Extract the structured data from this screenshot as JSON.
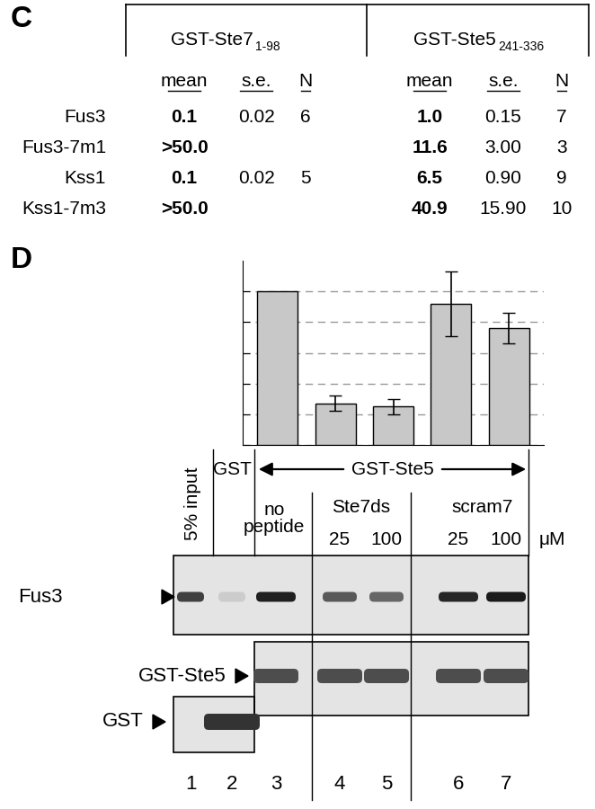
{
  "panel_c": {
    "label": "C",
    "table": {
      "groups": [
        {
          "name": "GST-Ste7",
          "subscript": "1-98"
        },
        {
          "name": "GST-Ste5",
          "subscript": "241-336"
        }
      ],
      "columns": [
        "mean",
        "s.e.",
        "N"
      ],
      "rows": [
        {
          "name": "Fus3",
          "cells": [
            "0.1",
            "0.02",
            "6",
            "1.0",
            "0.15",
            "7"
          ]
        },
        {
          "name": "Fus3-7m1",
          "cells": [
            ">50.0",
            null,
            null,
            "11.6",
            "3.00",
            "3"
          ]
        },
        {
          "name": "Kss1",
          "cells": [
            "0.1",
            "0.02",
            "5",
            "6.5",
            "0.90",
            "9"
          ]
        },
        {
          "name": "Kss1-7m3",
          "cells": [
            ">50.0",
            null,
            null,
            "40.9",
            "15.90",
            "10"
          ]
        }
      ]
    }
  },
  "chart_data": {
    "type": "bar",
    "categories": [
      null,
      null,
      null,
      null,
      null
    ],
    "values": [
      1.0,
      0.27,
      0.25,
      0.92,
      0.76
    ],
    "errors": [
      null,
      0.05,
      0.05,
      0.21,
      0.1
    ],
    "color": "#c8c8c8",
    "ylim": [
      0,
      1.2
    ],
    "yticks": [
      0,
      0.2,
      0.4,
      0.6,
      0.8,
      1.0
    ],
    "grid": true,
    "tick_labels": false
  },
  "panel_d": {
    "label": "D",
    "blot": {
      "input_label": "5% input",
      "control_label": "GST",
      "bait_label": "GST-Ste5",
      "conditions": [
        {
          "label": "no peptide"
        },
        {
          "label": "Ste7ds",
          "concentrations": [
            25,
            100
          ]
        },
        {
          "label": "scram7",
          "concentrations": [
            25,
            100
          ]
        }
      ],
      "unit": "μM",
      "rows": [
        "Fus3",
        "GST-Ste5",
        "GST"
      ],
      "lanes": [
        1,
        2,
        3,
        4,
        5,
        6,
        7
      ]
    }
  }
}
